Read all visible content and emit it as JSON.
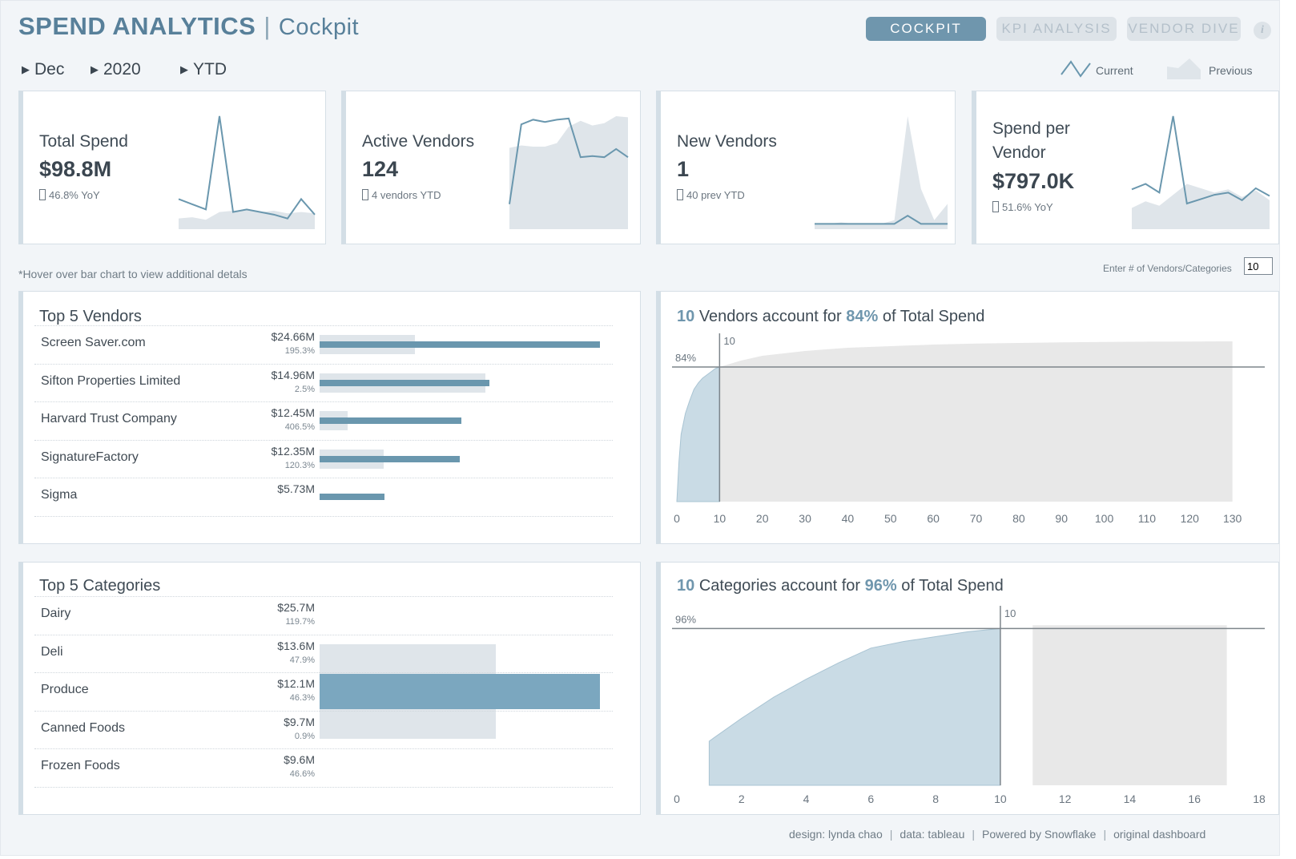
{
  "header": {
    "title": "SPEND ANALYTICS",
    "separator": "|",
    "subtitle": "Cockpit",
    "nav": [
      {
        "label": "COCKPIT",
        "active": true
      },
      {
        "label": "KPI ANALYSIS",
        "active": false
      },
      {
        "label": "VENDOR DIVE",
        "active": false
      }
    ],
    "info_icon": "i"
  },
  "filters": [
    {
      "label": "Dec",
      "icon": "triangle-right-icon"
    },
    {
      "label": "2020",
      "icon": "triangle-right-icon"
    },
    {
      "label": "YTD",
      "icon": "triangle-right-icon"
    }
  ],
  "legend": {
    "current": "Current",
    "previous": "Previous"
  },
  "kpis": [
    {
      "title_lines": [
        "Total Spend"
      ],
      "value": "$98.8M",
      "sub": "46.8% YoY",
      "current": [
        2.2,
        1.8,
        1.4,
        8.6,
        1.2,
        1.4,
        1.2,
        1.0,
        0.7,
        2.2,
        1.0
      ],
      "previous": [
        0.7,
        0.8,
        0.6,
        1.2,
        1.3,
        1.4,
        1.2,
        1.3,
        1.1,
        1.2,
        1.1
      ]
    },
    {
      "title_lines": [
        "Active Vendors"
      ],
      "value": "124",
      "sub": "4 vendors YTD",
      "current": [
        2.0,
        8.8,
        9.2,
        9.0,
        9.2,
        9.3,
        6.0,
        6.1,
        6.0,
        6.7,
        6.0
      ],
      "previous": [
        6.8,
        7.0,
        6.9,
        6.9,
        7.2,
        8.6,
        9.1,
        8.7,
        8.9,
        9.5,
        9.4
      ]
    },
    {
      "title_lines": [
        "New Vendors"
      ],
      "value": "1",
      "sub": "40 prev YTD",
      "current": [
        0.5,
        0.5,
        0.5,
        0.5,
        0.5,
        0.5,
        0.5,
        1.6,
        0.5,
        0.5,
        0.5
      ],
      "previous": [
        0.5,
        0.5,
        0.7,
        0.5,
        0.5,
        0.5,
        1.0,
        15.0,
        5.2,
        1.0,
        3.2
      ]
    },
    {
      "title_lines": [
        "Spend per",
        "Vendor"
      ],
      "value": "$797.0K",
      "sub": "51.6% YoY",
      "current": [
        3.5,
        4.0,
        3.2,
        10.2,
        2.2,
        2.6,
        3.0,
        3.2,
        2.5,
        3.6,
        2.9
      ],
      "previous": [
        1.8,
        2.4,
        2.0,
        3.0,
        4.0,
        3.6,
        3.2,
        3.5,
        2.8,
        3.4,
        2.5
      ]
    }
  ],
  "notes": {
    "hover": "*Hover over bar chart to view additional detals",
    "input_label": "Enter # of Vendors/Categories",
    "input_value": "10"
  },
  "vendors_panel": {
    "title": "Top 5 Vendors",
    "rows": [
      {
        "name": "Screen Saver.com",
        "value": "$24.66M",
        "pct": "195.3%",
        "current": 24.66,
        "previous": 8.35
      },
      {
        "name": "Sifton Properties Limited",
        "value": "$14.96M",
        "pct": "2.5%",
        "current": 14.96,
        "previous": 14.6
      },
      {
        "name": "Harvard Trust Company",
        "value": "$12.45M",
        "pct": "406.5%",
        "current": 12.45,
        "previous": 2.46
      },
      {
        "name": "SignatureFactory",
        "value": "$12.35M",
        "pct": "120.3%",
        "current": 12.35,
        "previous": 5.61
      },
      {
        "name": "Sigma",
        "value": "$5.73M",
        "pct": "",
        "current": 5.73,
        "previous": 0
      }
    ]
  },
  "categories_panel": {
    "title": "Top 5 Categories",
    "rows": [
      {
        "name": "Dairy",
        "value": "$25.7M",
        "pct": "119.7%"
      },
      {
        "name": "Deli",
        "value": "$13.6M",
        "pct": "47.9%"
      },
      {
        "name": "Produce",
        "value": "$12.1M",
        "pct": "46.3%"
      },
      {
        "name": "Canned Foods",
        "value": "$9.7M",
        "pct": "0.9%"
      },
      {
        "name": "Frozen Foods",
        "value": "$9.6M",
        "pct": "46.6%"
      }
    ]
  },
  "vendor_pareto": {
    "title_count": "10",
    "title_mid": "Vendors account for",
    "title_pct": "84%",
    "title_end": "of Total Spend",
    "ref_label_pct": "84%",
    "ref_label_n": "10"
  },
  "category_pareto": {
    "title_count": "10",
    "title_mid": "Categories account for",
    "title_pct": "96%",
    "title_end": "of Total Spend",
    "ref_label_pct": "96%",
    "ref_label_n": "10"
  },
  "chart_data": [
    {
      "type": "area",
      "title": "10 Vendors account for 84% of Total Spend",
      "x_ticks": [
        0,
        10,
        20,
        30,
        40,
        50,
        60,
        70,
        80,
        90,
        100,
        110,
        120,
        130
      ],
      "xlim": [
        0,
        134
      ],
      "ylim": [
        0,
        100
      ],
      "reference_x": 10,
      "reference_y": 84,
      "series": [
        {
          "x": [
            0,
            0.5,
            1,
            2,
            3,
            4,
            5,
            6,
            7,
            8,
            9,
            10
          ],
          "values": [
            0,
            25,
            42,
            55,
            63,
            70,
            74,
            77,
            79,
            81,
            83,
            84
          ]
        },
        {
          "x": [
            10,
            15,
            20,
            30,
            40,
            50,
            60,
            70,
            80,
            90,
            100,
            110,
            120,
            130
          ],
          "values": [
            84,
            88,
            91,
            94,
            96,
            97,
            98,
            98.6,
            99,
            99.4,
            99.6,
            99.8,
            99.9,
            100
          ]
        }
      ]
    },
    {
      "type": "area",
      "title": "10 Categories account for 96% of Total Spend",
      "x_ticks": [
        0,
        2,
        4,
        6,
        8,
        10,
        12,
        14,
        16,
        18
      ],
      "xlim": [
        0,
        18
      ],
      "ylim": [
        0,
        105
      ],
      "reference_x": 10,
      "reference_y": 96,
      "series": [
        {
          "x": [
            1,
            2,
            3,
            4,
            5,
            6,
            7,
            8,
            9,
            10
          ],
          "values": [
            27,
            41,
            54,
            65,
            75,
            84,
            88,
            91,
            94,
            96
          ]
        },
        {
          "x": [
            11,
            12,
            13,
            14,
            15,
            16,
            17
          ],
          "values": [
            98,
            98,
            98,
            98,
            98,
            98,
            98
          ]
        }
      ]
    }
  ],
  "footer": {
    "items": [
      "design: lynda chao",
      "data: tableau",
      "Powered by Snowflake",
      "original dashboard"
    ]
  },
  "colors": {
    "accent": "#6f96ad",
    "current_line": "#6a97ae",
    "previous_fill": "#dfe5ea",
    "pareto_fill": "#c9dbe5",
    "pareto_rest": "#e8e8e8"
  }
}
